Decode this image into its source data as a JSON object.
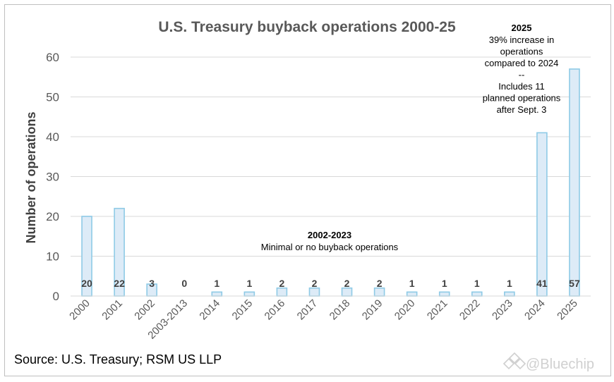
{
  "chart_data": {
    "type": "bar",
    "title": "U.S. Treasury buyback operations 2000-25",
    "xlabel": "",
    "ylabel": "Number of operations",
    "ylim": [
      0,
      60
    ],
    "yticks": [
      0,
      10,
      20,
      30,
      40,
      50,
      60
    ],
    "grid": true,
    "categories": [
      "2000",
      "2001",
      "2002",
      "2003-2013",
      "2014",
      "2015",
      "2016",
      "2017",
      "2018",
      "2019",
      "2020",
      "2021",
      "2022",
      "2023",
      "2024",
      "2025"
    ],
    "values": [
      20,
      22,
      3,
      0,
      1,
      1,
      2,
      2,
      2,
      2,
      1,
      1,
      1,
      1,
      41,
      57
    ],
    "bar_fill": "#ddebf7",
    "bar_stroke": "#8ecae6",
    "annotations": {
      "mid": {
        "heading": "2002-2023",
        "text": "Minimal or no buyback operations"
      },
      "right": {
        "heading": "2025",
        "lines": [
          "39% increase in",
          "operations",
          "compared to 2024",
          "--",
          "Includes 11",
          "planned operations",
          "after Sept. 3"
        ]
      }
    }
  },
  "source": "Source: U.S. Treasury; RSM US LLP",
  "watermark": "@Bluechip"
}
